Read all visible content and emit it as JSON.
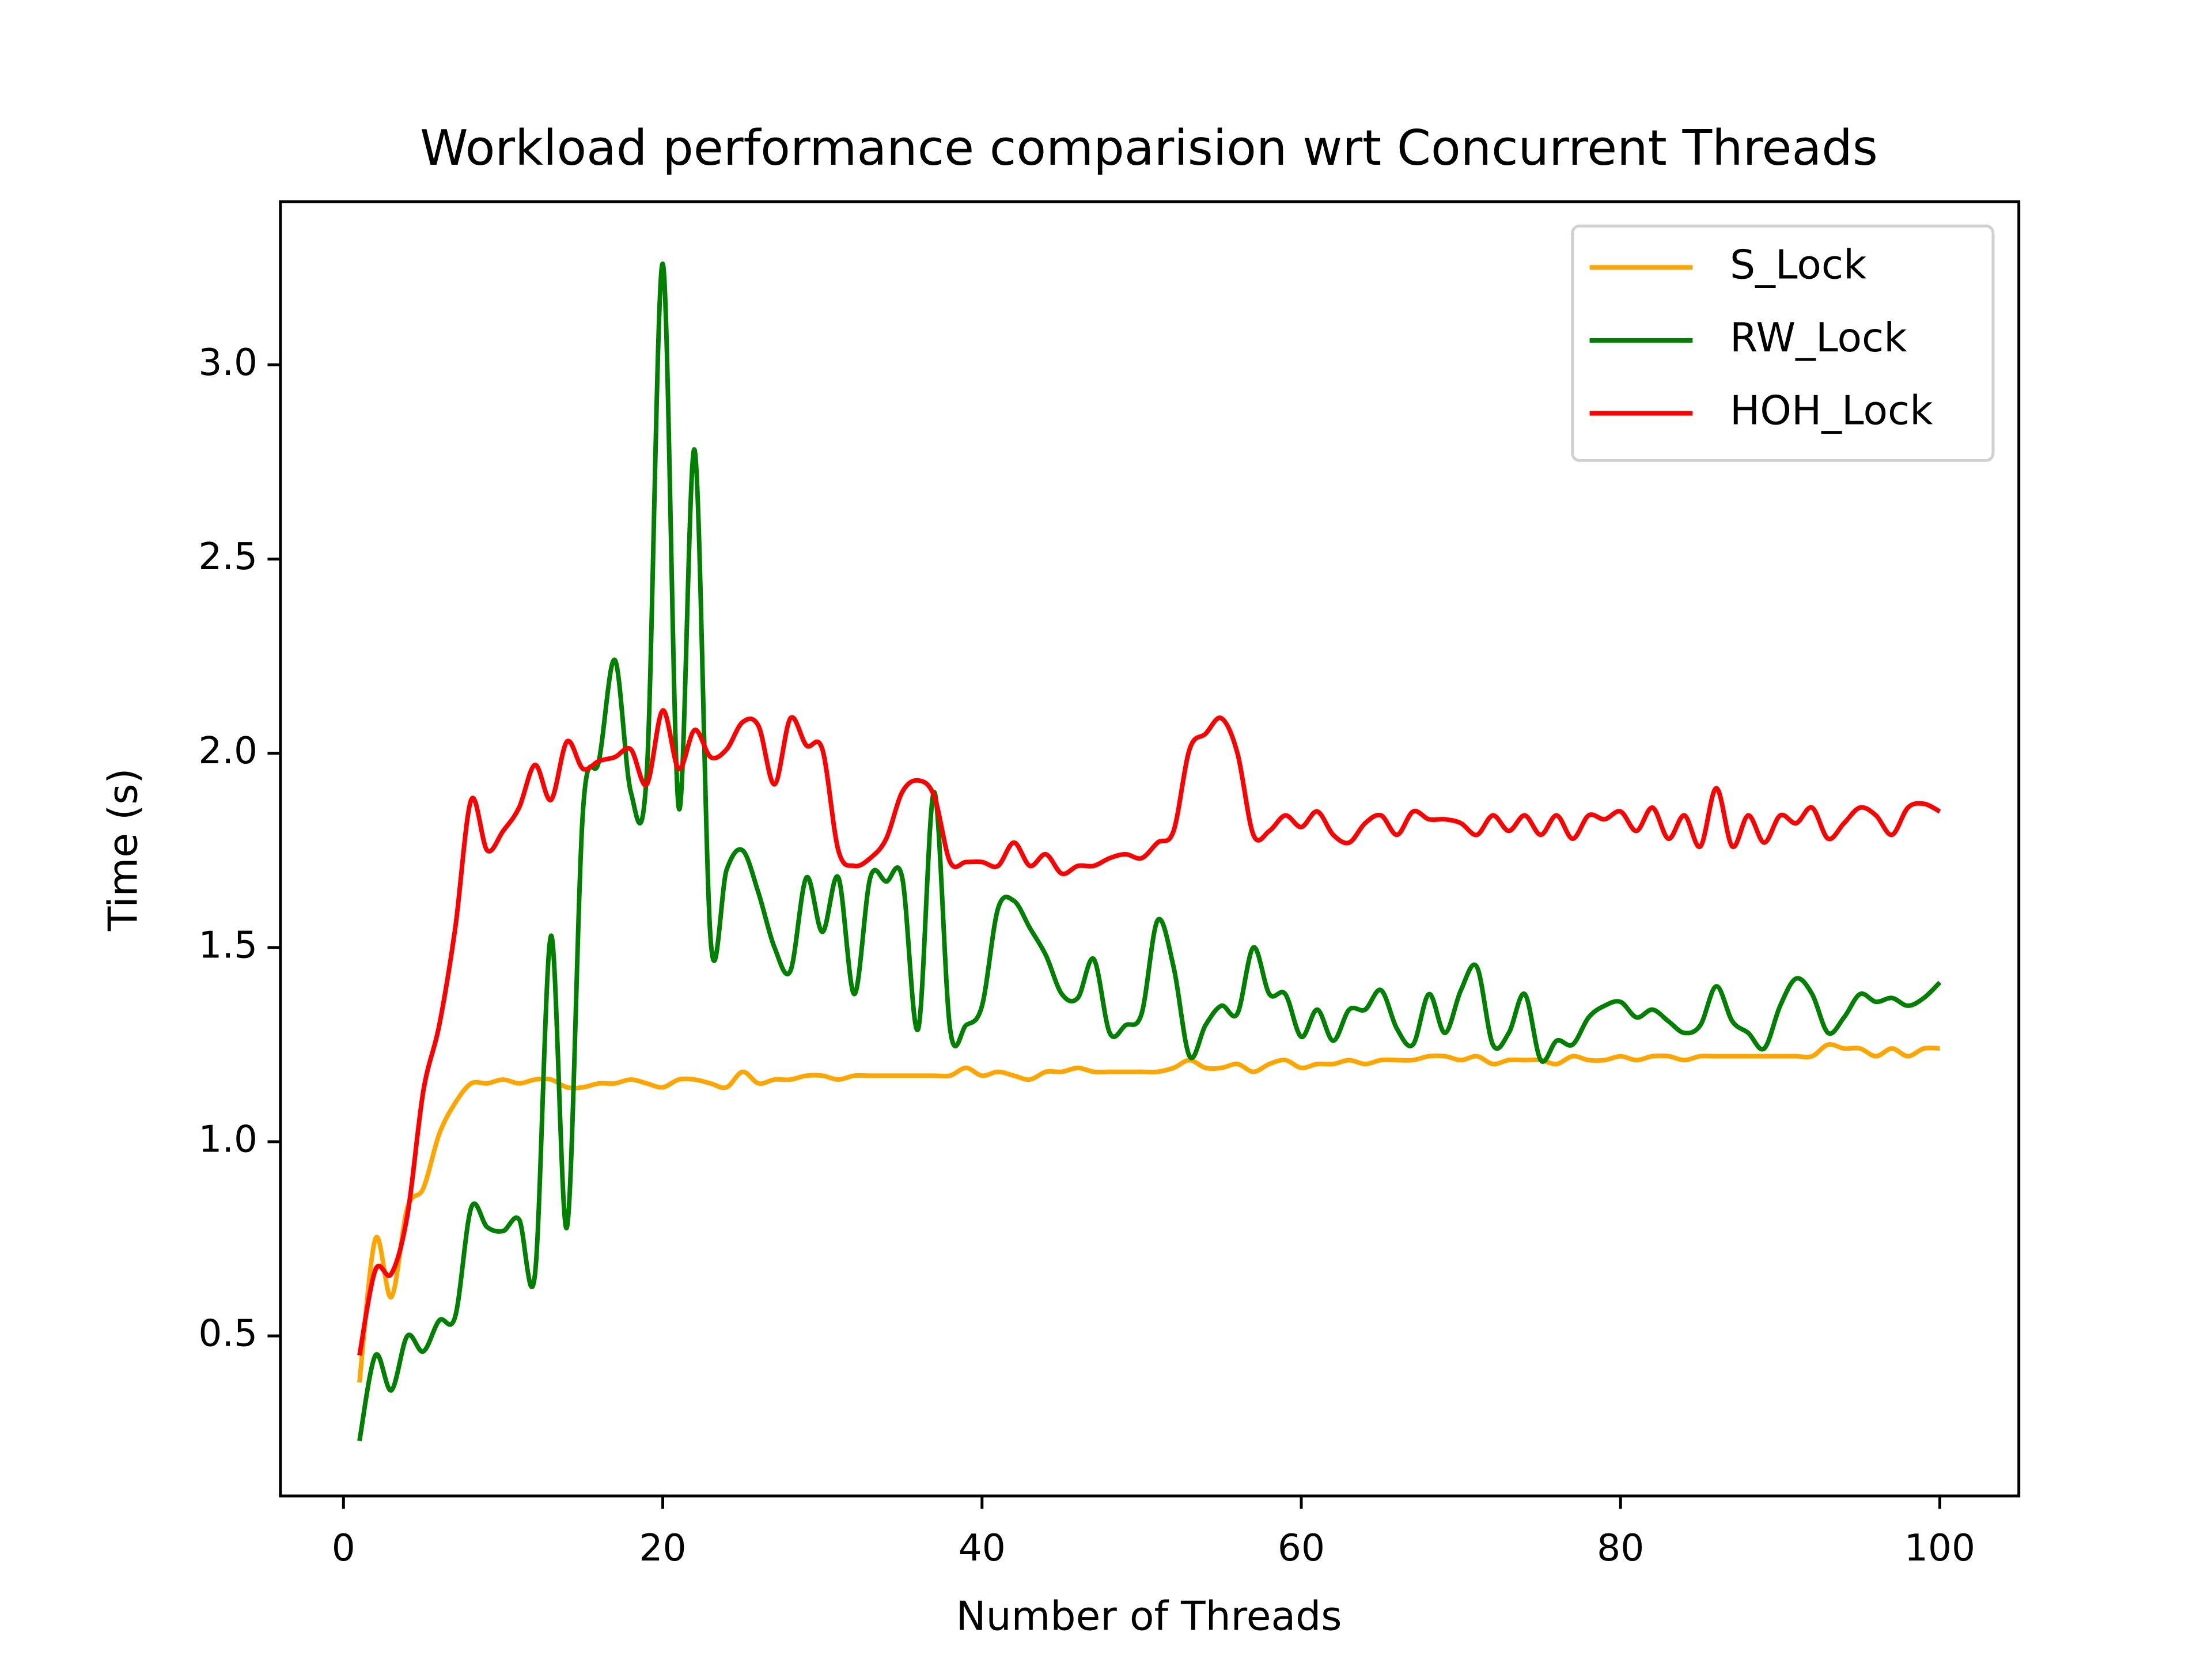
{
  "chart_data": {
    "type": "line",
    "title": "Workload performance comparision wrt Concurrent Threads",
    "x_label": "Number of Threads",
    "y_label": "Time (s)",
    "x": [
      1,
      2,
      3,
      4,
      5,
      6,
      7,
      8,
      9,
      10,
      11,
      12,
      13,
      14,
      15,
      16,
      17,
      18,
      19,
      20,
      21,
      22,
      23,
      24,
      25,
      26,
      27,
      28,
      29,
      30,
      31,
      32,
      33,
      34,
      35,
      36,
      37,
      38,
      39,
      40,
      41,
      42,
      43,
      44,
      45,
      46,
      47,
      48,
      49,
      50,
      51,
      52,
      53,
      54,
      55,
      56,
      57,
      58,
      59,
      60,
      61,
      62,
      63,
      64,
      65,
      66,
      67,
      68,
      69,
      70,
      71,
      72,
      73,
      74,
      75,
      76,
      77,
      78,
      79,
      80,
      81,
      82,
      83,
      84,
      85,
      86,
      87,
      88,
      89,
      90,
      91,
      92,
      93,
      94,
      95,
      96,
      97,
      98,
      99,
      100
    ],
    "series": [
      {
        "name": "S_Lock",
        "color": "#ffa500",
        "values": [
          0.38,
          0.75,
          0.6,
          0.83,
          0.88,
          1.02,
          1.1,
          1.15,
          1.15,
          1.16,
          1.15,
          1.16,
          1.16,
          1.14,
          1.14,
          1.15,
          1.15,
          1.16,
          1.15,
          1.14,
          1.16,
          1.16,
          1.15,
          1.14,
          1.18,
          1.15,
          1.16,
          1.16,
          1.17,
          1.17,
          1.16,
          1.17,
          1.17,
          1.17,
          1.17,
          1.17,
          1.17,
          1.17,
          1.19,
          1.17,
          1.18,
          1.17,
          1.16,
          1.18,
          1.18,
          1.19,
          1.18,
          1.18,
          1.18,
          1.18,
          1.18,
          1.19,
          1.21,
          1.19,
          1.19,
          1.2,
          1.18,
          1.2,
          1.21,
          1.19,
          1.2,
          1.2,
          1.21,
          1.2,
          1.21,
          1.21,
          1.21,
          1.22,
          1.22,
          1.21,
          1.22,
          1.2,
          1.21,
          1.21,
          1.21,
          1.2,
          1.22,
          1.21,
          1.21,
          1.22,
          1.21,
          1.22,
          1.22,
          1.21,
          1.22,
          1.22,
          1.22,
          1.22,
          1.22,
          1.22,
          1.22,
          1.22,
          1.25,
          1.24,
          1.24,
          1.22,
          1.24,
          1.22,
          1.24,
          1.24
        ]
      },
      {
        "name": "RW_Lock",
        "color": "#008000",
        "values": [
          0.23,
          0.45,
          0.36,
          0.5,
          0.46,
          0.54,
          0.55,
          0.83,
          0.78,
          0.77,
          0.8,
          0.66,
          1.53,
          0.78,
          1.85,
          1.98,
          2.24,
          1.9,
          1.95,
          3.26,
          1.86,
          2.78,
          1.52,
          1.7,
          1.75,
          1.64,
          1.5,
          1.44,
          1.68,
          1.54,
          1.68,
          1.38,
          1.68,
          1.67,
          1.68,
          1.29,
          1.9,
          1.29,
          1.3,
          1.35,
          1.6,
          1.62,
          1.55,
          1.48,
          1.38,
          1.37,
          1.47,
          1.28,
          1.3,
          1.33,
          1.57,
          1.45,
          1.22,
          1.3,
          1.35,
          1.33,
          1.5,
          1.38,
          1.38,
          1.27,
          1.34,
          1.26,
          1.34,
          1.34,
          1.39,
          1.29,
          1.25,
          1.38,
          1.28,
          1.39,
          1.45,
          1.25,
          1.28,
          1.38,
          1.21,
          1.26,
          1.25,
          1.32,
          1.35,
          1.36,
          1.32,
          1.34,
          1.31,
          1.28,
          1.3,
          1.4,
          1.31,
          1.28,
          1.24,
          1.35,
          1.42,
          1.38,
          1.28,
          1.32,
          1.38,
          1.36,
          1.37,
          1.35,
          1.37,
          1.41
        ]
      },
      {
        "name": "HOH_Lock",
        "color": "#ff0000",
        "values": [
          0.45,
          0.67,
          0.66,
          0.81,
          1.13,
          1.3,
          1.55,
          1.88,
          1.75,
          1.8,
          1.86,
          1.97,
          1.88,
          2.03,
          1.96,
          1.98,
          1.99,
          2.01,
          1.92,
          2.11,
          1.96,
          2.06,
          1.99,
          2.01,
          2.08,
          2.07,
          1.92,
          2.09,
          2.02,
          2.01,
          1.75,
          1.71,
          1.73,
          1.78,
          1.9,
          1.93,
          1.89,
          1.72,
          1.72,
          1.72,
          1.71,
          1.77,
          1.71,
          1.74,
          1.69,
          1.71,
          1.71,
          1.73,
          1.74,
          1.73,
          1.77,
          1.8,
          2.01,
          2.05,
          2.09,
          2.0,
          1.79,
          1.8,
          1.84,
          1.81,
          1.85,
          1.79,
          1.77,
          1.82,
          1.84,
          1.79,
          1.85,
          1.83,
          1.83,
          1.82,
          1.79,
          1.84,
          1.8,
          1.84,
          1.79,
          1.84,
          1.78,
          1.84,
          1.83,
          1.85,
          1.8,
          1.86,
          1.78,
          1.84,
          1.76,
          1.91,
          1.76,
          1.84,
          1.77,
          1.84,
          1.82,
          1.86,
          1.78,
          1.82,
          1.86,
          1.84,
          1.79,
          1.86,
          1.87,
          1.85
        ]
      }
    ],
    "xlim": [
      -3.95,
      104.95
    ],
    "ylim": [
      0.088,
      3.42
    ],
    "xticks": [
      0,
      20,
      40,
      60,
      80,
      100
    ],
    "yticks": [
      0.5,
      {
        "value": 1,
        "label": "1.0"
      },
      1.5,
      {
        "value": 2,
        "label": "2.0"
      },
      2.5,
      {
        "value": 3,
        "label": "3.0"
      }
    ],
    "grid": false,
    "legend": "upper right"
  }
}
